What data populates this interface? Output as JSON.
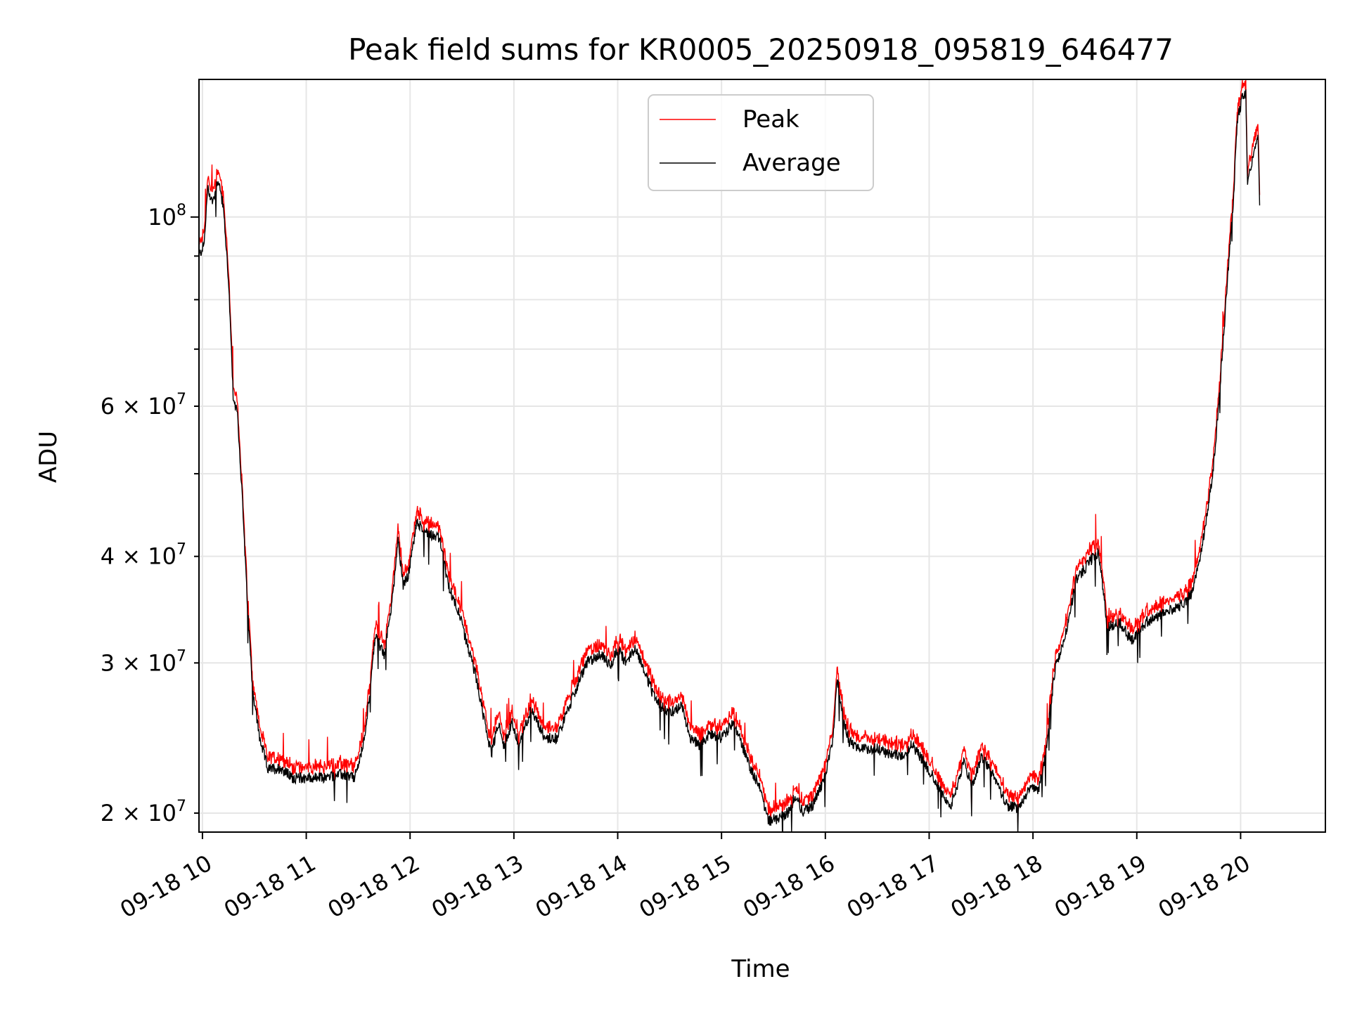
{
  "chart_data": {
    "type": "line",
    "title": "Peak field sums for KR0005_20250918_095819_646477",
    "xlabel": "Time",
    "ylabel": "ADU",
    "yscale": "log",
    "ylim": [
      19000000,
      145000000
    ],
    "xlim": [
      "2025-09-18 09:58",
      "2025-09-18 20:49"
    ],
    "grid": true,
    "legend_position": "upper center",
    "x_ticks": [
      {
        "t": "2025-09-18 10:00",
        "label": "09-18 10"
      },
      {
        "t": "2025-09-18 11:00",
        "label": "09-18 11"
      },
      {
        "t": "2025-09-18 12:00",
        "label": "09-18 12"
      },
      {
        "t": "2025-09-18 13:00",
        "label": "09-18 13"
      },
      {
        "t": "2025-09-18 14:00",
        "label": "09-18 14"
      },
      {
        "t": "2025-09-18 15:00",
        "label": "09-18 15"
      },
      {
        "t": "2025-09-18 16:00",
        "label": "09-18 16"
      },
      {
        "t": "2025-09-18 17:00",
        "label": "09-18 17"
      },
      {
        "t": "2025-09-18 18:00",
        "label": "09-18 18"
      },
      {
        "t": "2025-09-18 19:00",
        "label": "09-18 19"
      },
      {
        "t": "2025-09-18 20:00",
        "label": "09-18 20"
      }
    ],
    "y_ticks_major": [
      {
        "value": 100000000,
        "base": "10",
        "exp": "8"
      }
    ],
    "y_ticks_minor": [
      {
        "value": 20000000,
        "mant": "2",
        "base": "10",
        "exp": "7"
      },
      {
        "value": 30000000,
        "mant": "3",
        "base": "10",
        "exp": "7"
      },
      {
        "value": 40000000,
        "mant": "4",
        "base": "10",
        "exp": "7"
      },
      {
        "value": 60000000,
        "mant": "6",
        "base": "10",
        "exp": "7"
      }
    ],
    "y_minor_unlabeled": [
      50000000,
      70000000,
      80000000,
      90000000
    ],
    "series": [
      {
        "name": "Peak",
        "color": "#ff0000"
      },
      {
        "name": "Average",
        "color": "#000000"
      }
    ],
    "average": [
      [
        "2025-09-18 09:58",
        90000000
      ],
      [
        "2025-09-18 10:01",
        93000000
      ],
      [
        "2025-09-18 10:03",
        108000000
      ],
      [
        "2025-09-18 10:06",
        104000000
      ],
      [
        "2025-09-18 10:09",
        111000000
      ],
      [
        "2025-09-18 10:12",
        103000000
      ],
      [
        "2025-09-18 10:15",
        85000000
      ],
      [
        "2025-09-18 10:18",
        60000000
      ],
      [
        "2025-09-18 10:20",
        60000000
      ],
      [
        "2025-09-18 10:23",
        47000000
      ],
      [
        "2025-09-18 10:26",
        35000000
      ],
      [
        "2025-09-18 10:29",
        28000000
      ],
      [
        "2025-09-18 10:33",
        24500000
      ],
      [
        "2025-09-18 10:38",
        22500000
      ],
      [
        "2025-09-18 10:45",
        22600000
      ],
      [
        "2025-09-18 10:52",
        22000000
      ],
      [
        "2025-09-18 11:00",
        22000000
      ],
      [
        "2025-09-18 11:10",
        22000000
      ],
      [
        "2025-09-18 11:20",
        22200000
      ],
      [
        "2025-09-18 11:28",
        22000000
      ],
      [
        "2025-09-18 11:33",
        24000000
      ],
      [
        "2025-09-18 11:37",
        28000000
      ],
      [
        "2025-09-18 11:40",
        32500000
      ],
      [
        "2025-09-18 11:45",
        30500000
      ],
      [
        "2025-09-18 11:50",
        36000000
      ],
      [
        "2025-09-18 11:53",
        42000000
      ],
      [
        "2025-09-18 11:56",
        37000000
      ],
      [
        "2025-09-18 11:59",
        38000000
      ],
      [
        "2025-09-18 12:04",
        44000000
      ],
      [
        "2025-09-18 12:07",
        43000000
      ],
      [
        "2025-09-18 12:12",
        42500000
      ],
      [
        "2025-09-18 12:17",
        42000000
      ],
      [
        "2025-09-18 12:22",
        37000000
      ],
      [
        "2025-09-18 12:28",
        34500000
      ],
      [
        "2025-09-18 12:33",
        31500000
      ],
      [
        "2025-09-18 12:38",
        29000000
      ],
      [
        "2025-09-18 12:44",
        25000000
      ],
      [
        "2025-09-18 12:47",
        23500000
      ],
      [
        "2025-09-18 12:51",
        25500000
      ],
      [
        "2025-09-18 12:54",
        24000000
      ],
      [
        "2025-09-18 12:59",
        25500000
      ],
      [
        "2025-09-18 13:03",
        24000000
      ],
      [
        "2025-09-18 13:10",
        26500000
      ],
      [
        "2025-09-18 13:18",
        24500000
      ],
      [
        "2025-09-18 13:25",
        24500000
      ],
      [
        "2025-09-18 13:33",
        27000000
      ],
      [
        "2025-09-18 13:42",
        30000000
      ],
      [
        "2025-09-18 13:50",
        30700000
      ],
      [
        "2025-09-18 13:56",
        29800000
      ],
      [
        "2025-09-18 14:00",
        31200000
      ],
      [
        "2025-09-18 14:05",
        30000000
      ],
      [
        "2025-09-18 14:10",
        31300000
      ],
      [
        "2025-09-18 14:16",
        29200000
      ],
      [
        "2025-09-18 14:22",
        27000000
      ],
      [
        "2025-09-18 14:30",
        26200000
      ],
      [
        "2025-09-18 14:37",
        26700000
      ],
      [
        "2025-09-18 14:42",
        24500000
      ],
      [
        "2025-09-18 14:48",
        24000000
      ],
      [
        "2025-09-18 14:53",
        24800000
      ],
      [
        "2025-09-18 15:00",
        24500000
      ],
      [
        "2025-09-18 15:07",
        25500000
      ],
      [
        "2025-09-18 15:12",
        24000000
      ],
      [
        "2025-09-18 15:17",
        22500000
      ],
      [
        "2025-09-18 15:22",
        21500000
      ],
      [
        "2025-09-18 15:27",
        19600000
      ],
      [
        "2025-09-18 15:33",
        19700000
      ],
      [
        "2025-09-18 15:38",
        20000000
      ],
      [
        "2025-09-18 15:43",
        21000000
      ],
      [
        "2025-09-18 15:47",
        20000000
      ],
      [
        "2025-09-18 15:53",
        20500000
      ],
      [
        "2025-09-18 15:59",
        21800000
      ],
      [
        "2025-09-18 16:04",
        24000000
      ],
      [
        "2025-09-18 16:07",
        28700000
      ],
      [
        "2025-09-18 16:10",
        26000000
      ],
      [
        "2025-09-18 16:14",
        24200000
      ],
      [
        "2025-09-18 16:22",
        23800000
      ],
      [
        "2025-09-18 16:30",
        23800000
      ],
      [
        "2025-09-18 16:38",
        23400000
      ],
      [
        "2025-09-18 16:45",
        23400000
      ],
      [
        "2025-09-18 16:50",
        24100000
      ],
      [
        "2025-09-18 16:58",
        22800000
      ],
      [
        "2025-09-18 17:06",
        21400000
      ],
      [
        "2025-09-18 17:12",
        20200000
      ],
      [
        "2025-09-18 17:20",
        22900000
      ],
      [
        "2025-09-18 17:25",
        21500000
      ],
      [
        "2025-09-18 17:30",
        23300000
      ],
      [
        "2025-09-18 17:38",
        22000000
      ],
      [
        "2025-09-18 17:45",
        20400000
      ],
      [
        "2025-09-18 17:52",
        20300000
      ],
      [
        "2025-09-18 17:58",
        21400000
      ],
      [
        "2025-09-18 18:03",
        21200000
      ],
      [
        "2025-09-18 18:07",
        23200000
      ],
      [
        "2025-09-18 18:10",
        26500000
      ],
      [
        "2025-09-18 18:13",
        29800000
      ],
      [
        "2025-09-18 18:18",
        31800000
      ],
      [
        "2025-09-18 18:25",
        37500000
      ],
      [
        "2025-09-18 18:33",
        39500000
      ],
      [
        "2025-09-18 18:38",
        40500000
      ],
      [
        "2025-09-18 18:43",
        33000000
      ],
      [
        "2025-09-18 18:50",
        33500000
      ],
      [
        "2025-09-18 18:57",
        31800000
      ],
      [
        "2025-09-18 19:05",
        33500000
      ],
      [
        "2025-09-18 19:15",
        34200000
      ],
      [
        "2025-09-18 19:25",
        35000000
      ],
      [
        "2025-09-18 19:31",
        36000000
      ],
      [
        "2025-09-18 19:36",
        39000000
      ],
      [
        "2025-09-18 19:40",
        44000000
      ],
      [
        "2025-09-18 19:44",
        50000000
      ],
      [
        "2025-09-18 19:48",
        63000000
      ],
      [
        "2025-09-18 19:52",
        82000000
      ],
      [
        "2025-09-18 19:56",
        106000000
      ],
      [
        "2025-09-18 19:58",
        130000000
      ],
      [
        "2025-09-18 20:01",
        138000000
      ],
      [
        "2025-09-18 20:03",
        140000000
      ],
      [
        "2025-09-18 20:04",
        110000000
      ],
      [
        "2025-09-18 20:06",
        115000000
      ],
      [
        "2025-09-18 20:08",
        120000000
      ],
      [
        "2025-09-18 20:10",
        125000000
      ],
      [
        "2025-09-18 20:11",
        104000000
      ]
    ],
    "peak_ratio": 1.02
  }
}
